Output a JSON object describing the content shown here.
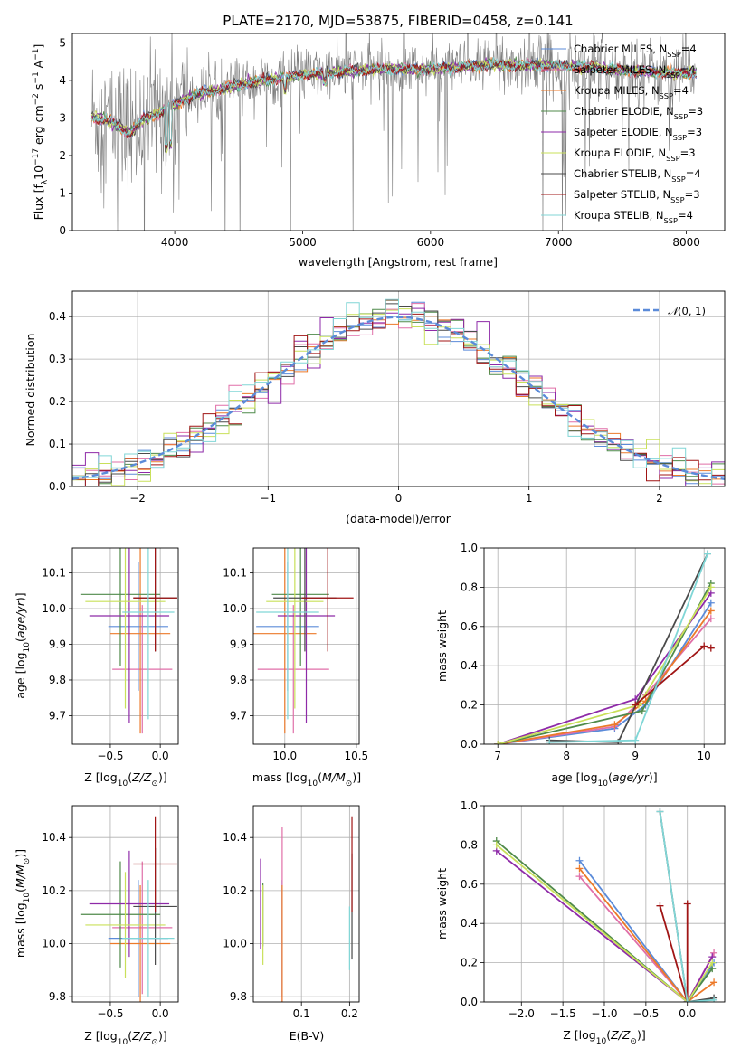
{
  "colors": {
    "chabrier_miles": "#5b8bd9",
    "salpeter_miles": "#e06fa8",
    "kroupa_miles": "#ec7a2a",
    "chabrier_elodie": "#4f8a4a",
    "salpeter_elodie": "#8e2aa8",
    "kroupa_elodie": "#c9e05a",
    "chabrier_stelib": "#4a4a4a",
    "salpeter_stelib": "#a01515",
    "kroupa_stelib": "#80d6d6",
    "data_spectrum": "#7f7f7f",
    "normal_curve": "#5b8bd9"
  },
  "chart_data": [
    {
      "id": "spectrum",
      "type": "line",
      "title": "PLATE=2170, MJD=53875, FIBERID=0458, z=0.141",
      "xlabel": "wavelength [Angstrom, rest frame]",
      "ylabel": "Flux [fλ10⁻¹⁷ erg cm⁻² s⁻¹ A⁻¹]",
      "xlim": [
        3200,
        8300
      ],
      "ylim": [
        0,
        5.25
      ],
      "xticks": [
        4000,
        5000,
        6000,
        7000,
        8000
      ],
      "yticks": [
        0,
        1,
        2,
        3,
        4,
        5
      ],
      "legend_position": "top-right",
      "legend": [
        "Chabrier MILES, N_SSP=4",
        "Salpeter MILES, N_SSP=4",
        "Kroupa MILES, N_SSP=4",
        "Chabrier ELODIE, N_SSP=3",
        "Salpeter ELODIE, N_SSP=3",
        "Kroupa ELODIE, N_SSP=3",
        "Chabrier STELIB, N_SSP=4",
        "Salpeter STELIB, N_SSP=3",
        "Kroupa STELIB, N_SSP=4"
      ],
      "continuum_x": [
        3350,
        3500,
        3650,
        3750,
        3850,
        3950,
        4050,
        4200,
        4400,
        4600,
        4800,
        5000,
        5200,
        5400,
        5600,
        5800,
        6000,
        6200,
        6400,
        6600,
        6800,
        7000,
        7200,
        7400,
        7600,
        7800,
        8000,
        8080
      ],
      "continuum_y": [
        3.05,
        2.9,
        2.6,
        2.95,
        3.1,
        3.25,
        3.45,
        3.65,
        3.8,
        3.95,
        4.05,
        4.15,
        4.2,
        4.25,
        4.3,
        4.3,
        4.3,
        4.35,
        4.4,
        4.4,
        4.4,
        4.4,
        4.35,
        4.3,
        4.25,
        4.2,
        4.2,
        4.2
      ]
    },
    {
      "id": "residual_hist",
      "type": "line",
      "xlabel": "(data-model)/error",
      "ylabel": "Normed distribution",
      "xlim": [
        -2.5,
        2.5
      ],
      "ylim": [
        0,
        0.46
      ],
      "xticks": [
        -2,
        -1,
        0,
        1,
        2
      ],
      "yticks": [
        0.0,
        0.1,
        0.2,
        0.3,
        0.4
      ],
      "grid": true,
      "legend_position": "top-right",
      "legend": [
        "𝒩(0, 1)"
      ],
      "bin_edges_start": -2.5,
      "bin_width": 0.1
    },
    {
      "id": "age_vs_Z",
      "type": "scatter",
      "xlabel": "Z [log₁₀(Z/Z⊙)]",
      "ylabel": "age  [log₁₀(age/yr)]",
      "xlim": [
        -0.88,
        0.18
      ],
      "ylim": [
        9.62,
        10.17
      ],
      "xticks": [
        -0.5,
        0.0
      ],
      "yticks": [
        9.7,
        9.8,
        9.9,
        10.0,
        10.1
      ],
      "grid": true,
      "points": [
        {
          "model": "chabrier_miles",
          "x": -0.22,
          "xerr": 0.3,
          "y": 9.95,
          "yerr": 0.18
        },
        {
          "model": "salpeter_miles",
          "x": -0.18,
          "xerr": 0.3,
          "y": 9.83,
          "yerr": 0.18
        },
        {
          "model": "kroupa_miles",
          "x": -0.2,
          "xerr": 0.3,
          "y": 9.93,
          "yerr": 0.28
        },
        {
          "model": "chabrier_elodie",
          "x": -0.4,
          "xerr": 0.4,
          "y": 10.04,
          "yerr": 0.2
        },
        {
          "model": "salpeter_elodie",
          "x": -0.31,
          "xerr": 0.4,
          "y": 9.98,
          "yerr": 0.3
        },
        {
          "model": "kroupa_elodie",
          "x": -0.35,
          "xerr": 0.4,
          "y": 10.02,
          "yerr": 0.3
        },
        {
          "model": "chabrier_stelib",
          "x": -0.05,
          "xerr": 0.22,
          "y": 10.03,
          "yerr": 0.15
        },
        {
          "model": "salpeter_stelib",
          "x": -0.05,
          "xerr": 0.22,
          "y": 10.03,
          "yerr": 0.15
        },
        {
          "model": "kroupa_stelib",
          "x": -0.12,
          "xerr": 0.26,
          "y": 9.99,
          "yerr": 0.3
        }
      ]
    },
    {
      "id": "age_vs_mass",
      "type": "scatter",
      "xlabel": "mass [log₁₀(M/M⊙)]",
      "ylabel": "",
      "xlim": [
        9.78,
        10.52
      ],
      "ylim": [
        9.62,
        10.17
      ],
      "xticks": [
        10.0,
        10.5
      ],
      "yticks": [
        9.7,
        9.8,
        9.9,
        10.0,
        10.1
      ],
      "grid": true,
      "points": [
        {
          "model": "chabrier_miles",
          "x": 10.02,
          "xerr": 0.22,
          "y": 9.95,
          "yerr": 0.18
        },
        {
          "model": "salpeter_miles",
          "x": 10.06,
          "xerr": 0.25,
          "y": 9.83,
          "yerr": 0.18
        },
        {
          "model": "kroupa_miles",
          "x": 10.0,
          "xerr": 0.22,
          "y": 9.93,
          "yerr": 0.28
        },
        {
          "model": "chabrier_elodie",
          "x": 10.11,
          "xerr": 0.2,
          "y": 10.04,
          "yerr": 0.2
        },
        {
          "model": "salpeter_elodie",
          "x": 10.15,
          "xerr": 0.2,
          "y": 9.98,
          "yerr": 0.3
        },
        {
          "model": "kroupa_elodie",
          "x": 10.07,
          "xerr": 0.2,
          "y": 10.02,
          "yerr": 0.3
        },
        {
          "model": "chabrier_stelib",
          "x": 10.14,
          "xerr": 0.22,
          "y": 10.03,
          "yerr": 0.15
        },
        {
          "model": "salpeter_stelib",
          "x": 10.3,
          "xerr": 0.18,
          "y": 10.03,
          "yerr": 0.15
        },
        {
          "model": "kroupa_stelib",
          "x": 10.02,
          "xerr": 0.22,
          "y": 9.99,
          "yerr": 0.3
        }
      ]
    },
    {
      "id": "weight_vs_age",
      "type": "line",
      "xlabel": "age  [log₁₀(age/yr)]",
      "ylabel": "mass weight",
      "xlim": [
        6.8,
        10.3
      ],
      "ylim": [
        0,
        1
      ],
      "xticks": [
        7,
        8,
        9,
        10
      ],
      "yticks": [
        0.0,
        0.2,
        0.4,
        0.6,
        0.8,
        1.0
      ],
      "grid": true,
      "series": [
        {
          "model": "chabrier_miles",
          "x": [
            7.0,
            8.7,
            9.15,
            10.1
          ],
          "y": [
            0.0,
            0.08,
            0.2,
            0.72
          ]
        },
        {
          "model": "salpeter_miles",
          "x": [
            7.0,
            8.7,
            9.15,
            10.1
          ],
          "y": [
            0.0,
            0.09,
            0.25,
            0.64
          ]
        },
        {
          "model": "kroupa_miles",
          "x": [
            7.0,
            8.7,
            9.15,
            10.1
          ],
          "y": [
            0.0,
            0.1,
            0.22,
            0.68
          ]
        },
        {
          "model": "chabrier_elodie",
          "x": [
            7.0,
            9.1,
            10.1
          ],
          "y": [
            0.0,
            0.17,
            0.82
          ]
        },
        {
          "model": "salpeter_elodie",
          "x": [
            7.0,
            9.0,
            10.1
          ],
          "y": [
            0.0,
            0.23,
            0.77
          ]
        },
        {
          "model": "kroupa_elodie",
          "x": [
            7.0,
            9.05,
            10.1
          ],
          "y": [
            0.0,
            0.2,
            0.8
          ]
        },
        {
          "model": "chabrier_stelib",
          "x": [
            7.75,
            8.75,
            10.05
          ],
          "y": [
            0.02,
            0.01,
            0.97
          ]
        },
        {
          "model": "salpeter_stelib",
          "x": [
            9.0,
            10.0,
            10.1
          ],
          "y": [
            0.2,
            0.5,
            0.49
          ]
        },
        {
          "model": "kroupa_stelib",
          "x": [
            7.75,
            9.0,
            10.05
          ],
          "y": [
            0.01,
            0.02,
            0.97
          ]
        }
      ]
    },
    {
      "id": "mass_vs_Z",
      "type": "scatter",
      "xlabel": "Z [log₁₀(Z/Z⊙)]",
      "ylabel": "mass [log₁₀(M/M⊙)]",
      "xlim": [
        -0.88,
        0.18
      ],
      "ylim": [
        9.78,
        10.52
      ],
      "xticks": [
        -0.5,
        0.0
      ],
      "yticks": [
        9.8,
        10.0,
        10.2,
        10.4
      ],
      "grid": true,
      "points": [
        {
          "model": "chabrier_miles",
          "x": -0.22,
          "xerr": 0.3,
          "y": 10.02,
          "yerr": 0.22
        },
        {
          "model": "salpeter_miles",
          "x": -0.18,
          "xerr": 0.3,
          "y": 10.06,
          "yerr": 0.25
        },
        {
          "model": "kroupa_miles",
          "x": -0.2,
          "xerr": 0.3,
          "y": 10.0,
          "yerr": 0.22
        },
        {
          "model": "chabrier_elodie",
          "x": -0.4,
          "xerr": 0.4,
          "y": 10.11,
          "yerr": 0.2
        },
        {
          "model": "salpeter_elodie",
          "x": -0.31,
          "xerr": 0.4,
          "y": 10.15,
          "yerr": 0.2
        },
        {
          "model": "kroupa_elodie",
          "x": -0.35,
          "xerr": 0.4,
          "y": 10.07,
          "yerr": 0.2
        },
        {
          "model": "chabrier_stelib",
          "x": -0.05,
          "xerr": 0.22,
          "y": 10.14,
          "yerr": 0.22
        },
        {
          "model": "salpeter_stelib",
          "x": -0.05,
          "xerr": 0.22,
          "y": 10.3,
          "yerr": 0.18
        },
        {
          "model": "kroupa_stelib",
          "x": -0.12,
          "xerr": 0.26,
          "y": 10.02,
          "yerr": 0.22
        }
      ]
    },
    {
      "id": "mass_vs_ebv",
      "type": "scatter",
      "xlabel": "E(B-V)",
      "ylabel": "",
      "xlim": [
        0.0,
        0.22
      ],
      "ylim": [
        9.78,
        10.52
      ],
      "xticks": [
        0.1,
        0.2
      ],
      "yticks": [
        9.8,
        10.0,
        10.2,
        10.4
      ],
      "grid": true,
      "points": [
        {
          "model": "chabrier_miles",
          "x": 0.06,
          "y": 10.02,
          "yerr": 0.22
        },
        {
          "model": "salpeter_miles",
          "x": 0.06,
          "y": 10.06,
          "yerr": 0.38
        },
        {
          "model": "kroupa_miles",
          "x": 0.06,
          "y": 10.0,
          "yerr": 0.22
        },
        {
          "model": "chabrier_elodie",
          "x": 0.02,
          "y": 10.11,
          "yerr": 0.12
        },
        {
          "model": "salpeter_elodie",
          "x": 0.015,
          "y": 10.15,
          "yerr": 0.17
        },
        {
          "model": "kroupa_elodie",
          "x": 0.02,
          "y": 10.07,
          "yerr": 0.15
        },
        {
          "model": "chabrier_stelib",
          "x": 0.205,
          "y": 10.14,
          "yerr": 0.2
        },
        {
          "model": "salpeter_stelib",
          "x": 0.205,
          "y": 10.3,
          "yerr": 0.18
        },
        {
          "model": "kroupa_stelib",
          "x": 0.2,
          "y": 10.02,
          "yerr": 0.12
        }
      ]
    },
    {
      "id": "weight_vs_Z",
      "type": "line",
      "xlabel": "Z [log₁₀(Z/Z⊙)]",
      "ylabel": "mass weight",
      "xlim": [
        -2.45,
        0.45
      ],
      "ylim": [
        0,
        1
      ],
      "xticks": [
        -2.0,
        -1.5,
        -1.0,
        -0.5,
        0.0
      ],
      "yticks": [
        0.0,
        0.2,
        0.4,
        0.6,
        0.8,
        1.0
      ],
      "grid": true,
      "series": [
        {
          "model": "chabrier_miles",
          "x": [
            -1.3,
            0.0,
            0.32
          ],
          "y": [
            0.72,
            0.0,
            0.2
          ]
        },
        {
          "model": "salpeter_miles",
          "x": [
            -1.3,
            0.0,
            0.32
          ],
          "y": [
            0.64,
            0.0,
            0.25
          ]
        },
        {
          "model": "kroupa_miles",
          "x": [
            -1.3,
            0.0,
            0.32
          ],
          "y": [
            0.68,
            0.0,
            0.1
          ]
        },
        {
          "model": "chabrier_elodie",
          "x": [
            -2.3,
            0.0,
            0.3
          ],
          "y": [
            0.82,
            0.0,
            0.17
          ]
        },
        {
          "model": "salpeter_elodie",
          "x": [
            -2.3,
            0.0,
            0.3
          ],
          "y": [
            0.77,
            0.0,
            0.23
          ]
        },
        {
          "model": "kroupa_elodie",
          "x": [
            -2.3,
            0.0,
            0.3
          ],
          "y": [
            0.8,
            0.0,
            0.2
          ]
        },
        {
          "model": "chabrier_stelib",
          "x": [
            -0.33,
            0.0,
            0.32
          ],
          "y": [
            0.97,
            0.0,
            0.02
          ]
        },
        {
          "model": "salpeter_stelib",
          "x": [
            -0.33,
            0.0,
            0.0
          ],
          "y": [
            0.49,
            0.0,
            0.5
          ]
        },
        {
          "model": "kroupa_stelib",
          "x": [
            -0.33,
            0.0,
            0.32
          ],
          "y": [
            0.97,
            0.0,
            0.01
          ]
        }
      ]
    }
  ]
}
